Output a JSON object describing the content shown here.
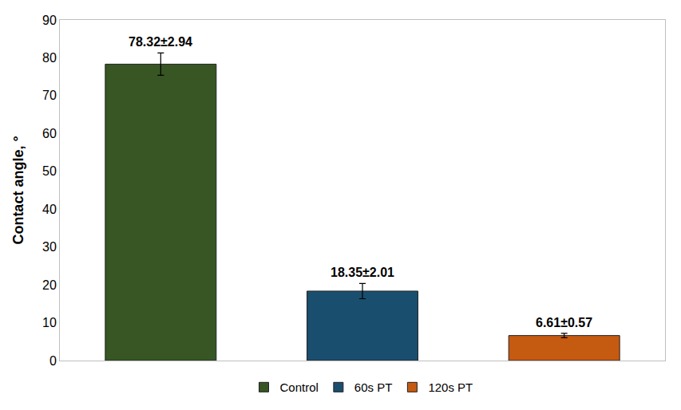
{
  "chart_data": {
    "type": "bar",
    "y_label": "Contact angle, °",
    "categories": [
      "Control",
      "60s PT",
      "120s PT"
    ],
    "values": [
      78.32,
      18.35,
      6.61
    ],
    "errors": [
      2.94,
      2.01,
      0.57
    ],
    "value_labels": [
      "78.32±2.94",
      "18.35±2.01",
      "6.61±0.57"
    ],
    "colors": [
      "#375623",
      "#1a4e6e",
      "#c55a11"
    ],
    "ylim": [
      0,
      90
    ],
    "yticks": [
      0,
      10,
      20,
      30,
      40,
      50,
      60,
      70,
      80,
      90
    ],
    "grid": false,
    "data_labels": true,
    "legend": "bottom",
    "tick_labels": "y"
  }
}
